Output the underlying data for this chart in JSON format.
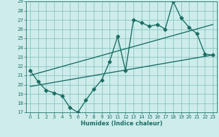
{
  "xlabel": "Humidex (Indice chaleur)",
  "background_color": "#cdecea",
  "grid_color": "#7bbdb8",
  "line_color": "#1a6e66",
  "xlim": [
    -0.5,
    23.5
  ],
  "ylim": [
    17,
    29
  ],
  "yticks": [
    17,
    18,
    19,
    20,
    21,
    22,
    23,
    24,
    25,
    26,
    27,
    28,
    29
  ],
  "xticks": [
    0,
    1,
    2,
    3,
    4,
    5,
    6,
    7,
    8,
    9,
    10,
    11,
    12,
    13,
    14,
    15,
    16,
    17,
    18,
    19,
    20,
    21,
    22,
    23
  ],
  "main_x": [
    0,
    1,
    2,
    3,
    4,
    5,
    6,
    7,
    8,
    9,
    10,
    11,
    12,
    13,
    14,
    15,
    16,
    17,
    18,
    19,
    20,
    21,
    22,
    23
  ],
  "main_y": [
    21.5,
    20.3,
    19.4,
    19.1,
    18.8,
    17.5,
    17.0,
    18.3,
    19.5,
    20.5,
    22.5,
    25.2,
    21.5,
    27.0,
    26.7,
    26.3,
    26.5,
    26.0,
    29.0,
    27.2,
    26.2,
    25.5,
    23.3,
    23.2
  ],
  "trend1_x": [
    0,
    23
  ],
  "trend1_y": [
    21.0,
    26.5
  ],
  "trend2_x": [
    0,
    23
  ],
  "trend2_y": [
    19.8,
    23.2
  ],
  "marker_size": 2.5,
  "line_width": 1.0,
  "tick_fontsize": 5.0,
  "xlabel_fontsize": 6.0
}
